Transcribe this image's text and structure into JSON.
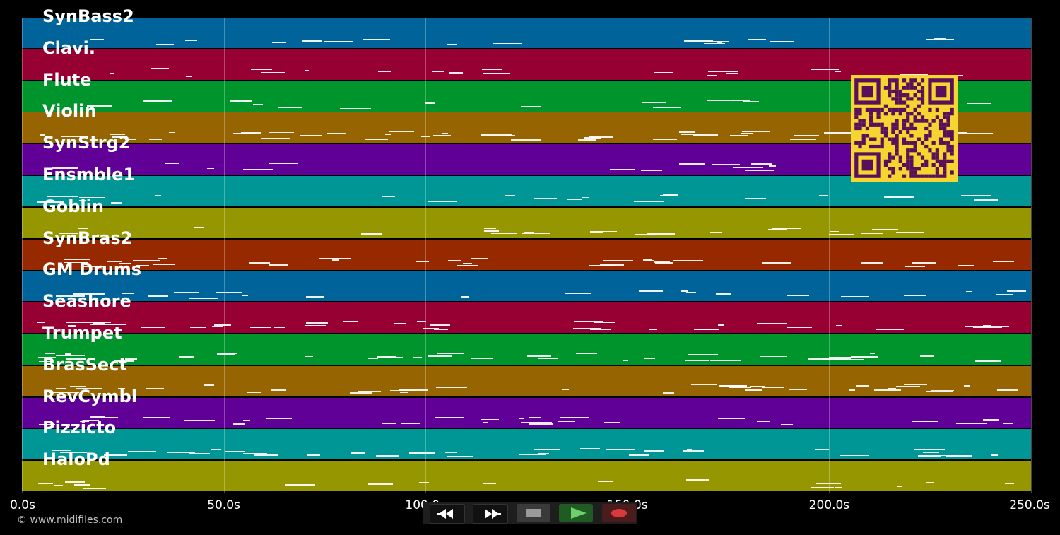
{
  "tracks": [
    {
      "name": "SynBass2",
      "color": "#00639a"
    },
    {
      "name": "Clavi.",
      "color": "#970032"
    },
    {
      "name": "Flute",
      "color": "#00952c"
    },
    {
      "name": "Violin",
      "color": "#966400"
    },
    {
      "name": "SynStrg2",
      "color": "#600096"
    },
    {
      "name": "Ensmble1",
      "color": "#009696"
    },
    {
      "name": "Goblin",
      "color": "#969600"
    },
    {
      "name": "SynBras2",
      "color": "#962900"
    },
    {
      "name": "GM Drums",
      "color": "#00639a"
    },
    {
      "name": "Seashore",
      "color": "#970032"
    },
    {
      "name": "Trumpet",
      "color": "#00952c"
    },
    {
      "name": "BrasSect",
      "color": "#966400"
    },
    {
      "name": "RevCymbl",
      "color": "#600096"
    },
    {
      "name": "Pizzicto",
      "color": "#009696"
    },
    {
      "name": "HaloPd",
      "color": "#969600"
    }
  ],
  "timeline": {
    "ticks": [
      "0.0s",
      "50.0s",
      "100.0s",
      "150.0s",
      "200.0s",
      "250.0s"
    ],
    "duration_seconds": 250
  },
  "copyright": "© www.midifiles.com",
  "transport": {
    "rewind_icon": "rewind-icon",
    "fast_forward_icon": "fast-forward-icon",
    "stop_icon": "stop-icon",
    "play_icon": "play-icon",
    "record_icon": "record-icon",
    "play_color": "#6fcf6f",
    "record_color": "#d9383f"
  },
  "qr_code": {
    "foreground": "#5a0f5a",
    "background": "#f5d530"
  }
}
